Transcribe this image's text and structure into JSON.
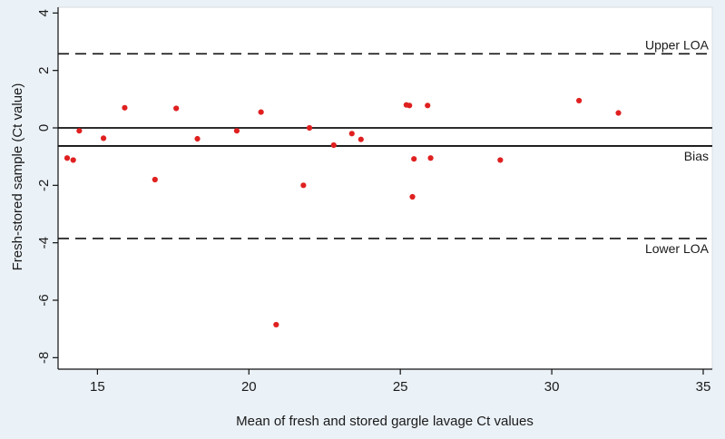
{
  "chart_data": {
    "type": "scatter",
    "xlabel": "Mean of fresh and stored gargle lavage Ct values",
    "ylabel": "Fresh-stored sample (Ct value)",
    "xlim": [
      13.7,
      35.3
    ],
    "ylim": [
      -8.4,
      4.2
    ],
    "x_ticks": [
      15,
      20,
      25,
      30,
      35
    ],
    "y_ticks": [
      -8,
      -6,
      -4,
      -2,
      0,
      2,
      4
    ],
    "grid": false,
    "point_color": "#e02020",
    "points": [
      {
        "x": 14.0,
        "y": -1.05
      },
      {
        "x": 14.2,
        "y": -1.12
      },
      {
        "x": 14.4,
        "y": -0.1
      },
      {
        "x": 15.2,
        "y": -0.36
      },
      {
        "x": 15.9,
        "y": 0.7
      },
      {
        "x": 16.9,
        "y": -1.8
      },
      {
        "x": 17.6,
        "y": 0.68
      },
      {
        "x": 18.3,
        "y": -0.38
      },
      {
        "x": 19.6,
        "y": -0.1
      },
      {
        "x": 20.4,
        "y": 0.55
      },
      {
        "x": 20.9,
        "y": -6.85
      },
      {
        "x": 21.8,
        "y": -2.0
      },
      {
        "x": 22.0,
        "y": 0.0
      },
      {
        "x": 22.8,
        "y": -0.6
      },
      {
        "x": 23.4,
        "y": -0.2
      },
      {
        "x": 23.7,
        "y": -0.4
      },
      {
        "x": 25.2,
        "y": 0.8
      },
      {
        "x": 25.3,
        "y": 0.78
      },
      {
        "x": 25.4,
        "y": -2.4
      },
      {
        "x": 25.45,
        "y": -1.08
      },
      {
        "x": 25.9,
        "y": 0.78
      },
      {
        "x": 26.0,
        "y": -1.05
      },
      {
        "x": 28.3,
        "y": -1.12
      },
      {
        "x": 30.9,
        "y": 0.95
      },
      {
        "x": 32.2,
        "y": 0.52
      }
    ],
    "reference_lines": [
      {
        "y": 2.58,
        "style": "dashed",
        "label": "Upper LOA",
        "label_pos": "above"
      },
      {
        "y": 0,
        "style": "solid",
        "label": "",
        "label_pos": "none"
      },
      {
        "y": -0.63,
        "style": "solid",
        "label": "Bias",
        "label_pos": "below"
      },
      {
        "y": -3.85,
        "style": "dashed",
        "label": "Lower LOA",
        "label_pos": "below"
      }
    ]
  }
}
